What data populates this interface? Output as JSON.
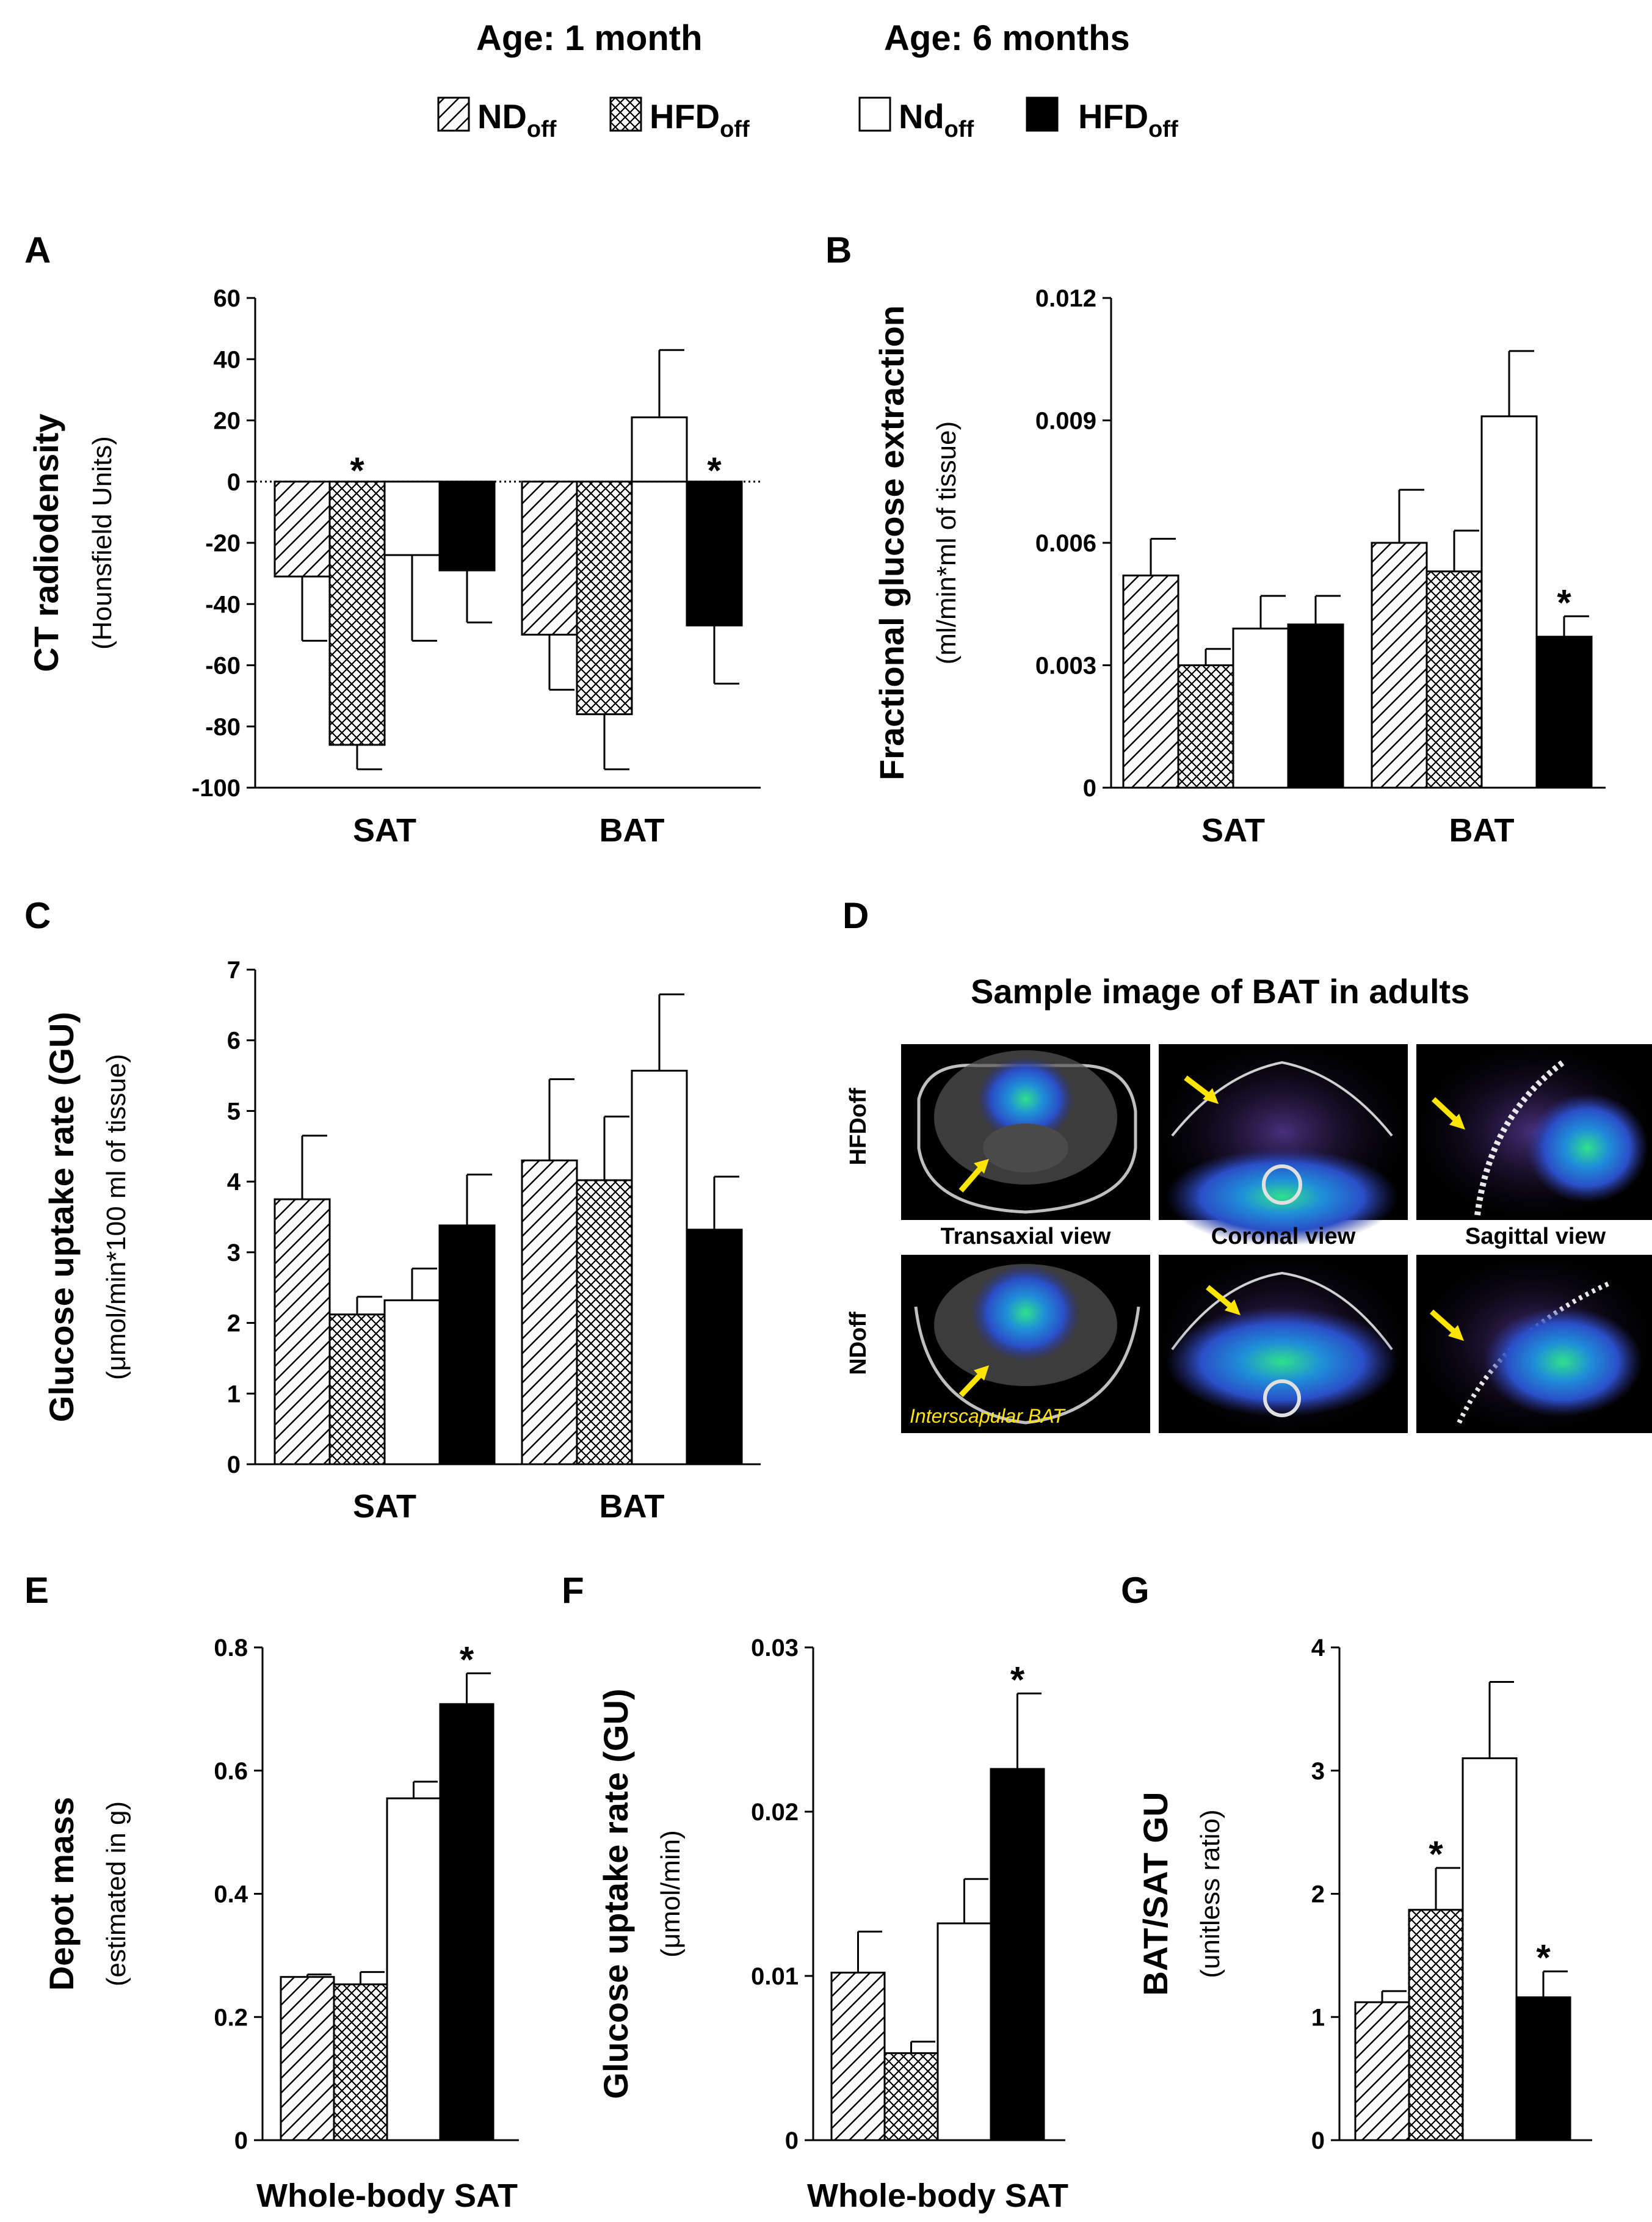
{
  "legend": {
    "groups": [
      {
        "title": "Age: 1 month",
        "items": [
          {
            "base": "ND",
            "sub": "off",
            "pattern": "hatch"
          },
          {
            "base": "HFD",
            "sub": "off",
            "pattern": "cross"
          }
        ]
      },
      {
        "title": "Age: 6 months",
        "items": [
          {
            "base": "Nd",
            "sub": "off",
            "pattern": "white"
          },
          {
            "base": "HFD",
            "sub": "off",
            "pattern": "black"
          }
        ]
      }
    ]
  },
  "colors": {
    "bar_outline": "#000000",
    "black_fill": "#000000",
    "arrow": "#ffe500",
    "image_bg": "#000000"
  },
  "chart_data": [
    {
      "panel": "A",
      "type": "bar",
      "ylabel": "CT radiodensity",
      "ylabel_sub": "(Hounsfield Units)",
      "categories": [
        "SAT",
        "BAT"
      ],
      "ylim": [
        -100,
        60
      ],
      "yticks": [
        "60",
        "40",
        "20",
        "0",
        "-20",
        "-40",
        "-60",
        "-80",
        "-100"
      ],
      "zero_line": "dotted",
      "series": [
        {
          "values": [
            -31,
            -50
          ],
          "errors": [
            21,
            18
          ]
        },
        {
          "values": [
            -86,
            -76
          ],
          "errors": [
            8,
            18
          ]
        },
        {
          "values": [
            -24,
            21
          ],
          "errors": [
            28,
            22
          ]
        },
        {
          "values": [
            -29,
            -47
          ],
          "errors": [
            17,
            19
          ]
        }
      ],
      "significance": [
        {
          "category": 0,
          "series": 1,
          "label": "*"
        },
        {
          "category": 1,
          "series": 3,
          "label": "*"
        }
      ]
    },
    {
      "panel": "B",
      "type": "bar",
      "ylabel": "Fractional glucose extraction",
      "ylabel_sub": "(ml/min*ml of tissue)",
      "categories": [
        "SAT",
        "BAT"
      ],
      "ylim": [
        0,
        0.012
      ],
      "yticks": [
        "0.012",
        "0.009",
        "0.006",
        "0.003",
        "0"
      ],
      "series": [
        {
          "values": [
            0.0052,
            0.006
          ],
          "errors": [
            0.0009,
            0.0013
          ]
        },
        {
          "values": [
            0.003,
            0.0053
          ],
          "errors": [
            0.0004,
            0.001
          ]
        },
        {
          "values": [
            0.0039,
            0.0091
          ],
          "errors": [
            0.0008,
            0.0016
          ]
        },
        {
          "values": [
            0.004,
            0.0037
          ],
          "errors": [
            0.0007,
            0.0005
          ]
        }
      ],
      "significance": [
        {
          "category": 1,
          "series": 3,
          "label": "*"
        }
      ]
    },
    {
      "panel": "C",
      "type": "bar",
      "ylabel": "Glucose uptake rate (GU)",
      "ylabel_sub": "(μmol/min*100 ml of tissue)",
      "categories": [
        "SAT",
        "BAT"
      ],
      "ylim": [
        0,
        7
      ],
      "yticks": [
        "7",
        "6",
        "5",
        "4",
        "3",
        "2",
        "1",
        "0"
      ],
      "series": [
        {
          "values": [
            3.75,
            4.3
          ],
          "errors": [
            0.9,
            1.15
          ]
        },
        {
          "values": [
            2.12,
            4.02
          ],
          "errors": [
            0.25,
            0.9
          ]
        },
        {
          "values": [
            2.32,
            5.57
          ],
          "errors": [
            0.45,
            1.08
          ]
        },
        {
          "values": [
            3.38,
            3.32
          ],
          "errors": [
            0.72,
            0.75
          ]
        }
      ],
      "significance": []
    },
    {
      "panel": "E",
      "type": "bar",
      "ylabel": "Depot mass",
      "ylabel_sub": "(estimated in g)",
      "categories": [
        "Whole-body SAT"
      ],
      "ylim": [
        0,
        0.8
      ],
      "yticks": [
        "0.8",
        "0.6",
        "0.4",
        "0.2",
        "0"
      ],
      "series": [
        {
          "values": [
            0.265
          ],
          "errors": [
            0.004
          ]
        },
        {
          "values": [
            0.253
          ],
          "errors": [
            0.02
          ]
        },
        {
          "values": [
            0.555
          ],
          "errors": [
            0.027
          ]
        },
        {
          "values": [
            0.708
          ],
          "errors": [
            0.05
          ]
        }
      ],
      "significance": [
        {
          "category": 0,
          "series": 3,
          "label": "*"
        }
      ]
    },
    {
      "panel": "F",
      "type": "bar",
      "ylabel": "Glucose uptake rate (GU)",
      "ylabel_sub": "(μmol/min)",
      "categories": [
        "Whole-body SAT"
      ],
      "ylim": [
        0,
        0.03
      ],
      "yticks": [
        "0.03",
        "0.02",
        "0.01",
        "0"
      ],
      "series": [
        {
          "values": [
            0.0102
          ],
          "errors": [
            0.0025
          ]
        },
        {
          "values": [
            0.0053
          ],
          "errors": [
            0.0007
          ]
        },
        {
          "values": [
            0.0132
          ],
          "errors": [
            0.0027
          ]
        },
        {
          "values": [
            0.0226
          ],
          "errors": [
            0.0046
          ]
        }
      ],
      "significance": [
        {
          "category": 0,
          "series": 3,
          "label": "*"
        }
      ]
    },
    {
      "panel": "G",
      "type": "bar",
      "ylabel": "BAT/SAT GU",
      "ylabel_sub": "(unitless ratio)",
      "categories": [
        ""
      ],
      "ylim": [
        0,
        4
      ],
      "yticks": [
        "4",
        "3",
        "2",
        "1",
        "0"
      ],
      "series": [
        {
          "values": [
            1.12
          ],
          "errors": [
            0.09
          ]
        },
        {
          "values": [
            1.87
          ],
          "errors": [
            0.34
          ]
        },
        {
          "values": [
            3.1
          ],
          "errors": [
            0.62
          ]
        },
        {
          "values": [
            1.16
          ],
          "errors": [
            0.21
          ]
        }
      ],
      "significance": [
        {
          "category": 0,
          "series": 1,
          "label": "*"
        },
        {
          "category": 0,
          "series": 3,
          "label": "*"
        }
      ]
    }
  ],
  "image_panel": {
    "letter": "D",
    "title": "Sample image of BAT in adults",
    "rows": [
      "HFDoff",
      "NDoff"
    ],
    "views": [
      "Transaxial view",
      "Coronal view",
      "Sagittal view"
    ],
    "note": "Interscapular BAT"
  }
}
